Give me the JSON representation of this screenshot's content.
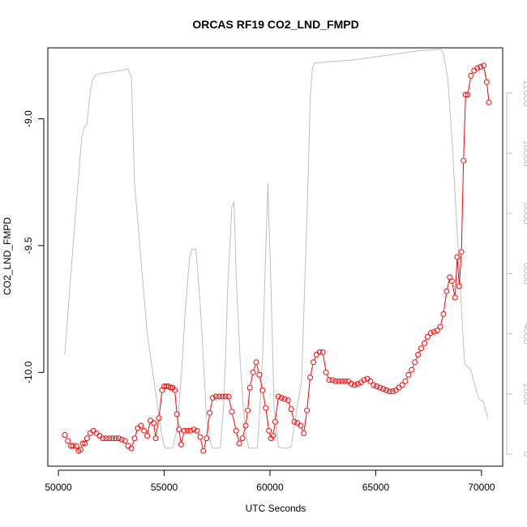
{
  "chart_data": {
    "type": "line",
    "title": "ORCAS RF19 CO2_LND_FMPD",
    "xlabel": "UTC Seconds",
    "ylabel": "CO2_LND_FMPD",
    "xlim": [
      49500,
      71000
    ],
    "ylim": [
      -10.37,
      -8.72
    ],
    "y2lim": [
      -400,
      13500
    ],
    "x_ticks": [
      50000,
      55000,
      60000,
      65000,
      70000
    ],
    "y_ticks": [
      -10.0,
      -9.5,
      -9.0
    ],
    "y_tick_labels": [
      "-10.0",
      "-9.5",
      "-9.0"
    ],
    "y2_ticks": [
      0,
      2000,
      4000,
      6000,
      8000,
      10000,
      12000
    ],
    "colors": {
      "co2": "#ff0000",
      "altitude": "#bebebe",
      "axis": "#000000"
    },
    "series": [
      {
        "color": "#ff0000",
        "style": "points+line",
        "x": [
          50300,
          50450,
          50600,
          50700,
          50850,
          50950,
          51050,
          51150,
          51250,
          51350,
          51500,
          51650,
          51800,
          51950,
          52100,
          52250,
          52400,
          52550,
          52700,
          52850,
          53000,
          53150,
          53300,
          53450,
          53600,
          53750,
          53900,
          54050,
          54200,
          54350,
          54500,
          54600,
          54750,
          54900,
          55000,
          55100,
          55200,
          55300,
          55400,
          55500,
          55600,
          55700,
          55800,
          55950,
          56100,
          56250,
          56400,
          56550,
          56700,
          56850,
          57000,
          57150,
          57300,
          57450,
          57600,
          57750,
          57900,
          58050,
          58200,
          58400,
          58550,
          58700,
          58850,
          58950,
          59050,
          59200,
          59350,
          59500,
          59650,
          59800,
          59950,
          60050,
          60150,
          60250,
          60400,
          60550,
          60700,
          60850,
          61000,
          61150,
          61300,
          61450,
          61600,
          61750,
          61900,
          62050,
          62200,
          62350,
          62500,
          62650,
          62800,
          62950,
          63100,
          63250,
          63400,
          63550,
          63700,
          63850,
          64000,
          64150,
          64300,
          64450,
          64600,
          64750,
          64900,
          65050,
          65200,
          65350,
          65500,
          65650,
          65800,
          65950,
          66100,
          66250,
          66400,
          66550,
          66700,
          66850,
          67000,
          67150,
          67300,
          67450,
          67600,
          67750,
          67900,
          68050,
          68200,
          68350,
          68500,
          68600,
          68750,
          68850,
          68950,
          69050,
          69150,
          69250,
          69350,
          69500,
          69650,
          69800,
          69950,
          70100,
          70250,
          70350
        ],
        "y": [
          -10.247,
          -10.27,
          -10.29,
          -10.29,
          -10.29,
          -10.31,
          -10.305,
          -10.28,
          -10.28,
          -10.26,
          -10.24,
          -10.23,
          -10.24,
          -10.25,
          -10.26,
          -10.26,
          -10.26,
          -10.26,
          -10.26,
          -10.26,
          -10.265,
          -10.27,
          -10.29,
          -10.3,
          -10.26,
          -10.22,
          -10.21,
          -10.23,
          -10.25,
          -10.19,
          -10.2,
          -10.26,
          -10.18,
          -10.07,
          -10.055,
          -10.055,
          -10.055,
          -10.06,
          -10.06,
          -10.07,
          -10.165,
          -10.225,
          -10.285,
          -10.23,
          -10.23,
          -10.23,
          -10.225,
          -10.23,
          -10.255,
          -10.31,
          -10.26,
          -10.16,
          -10.1,
          -10.095,
          -10.095,
          -10.095,
          -10.095,
          -10.095,
          -10.155,
          -10.23,
          -10.28,
          -10.26,
          -10.21,
          -10.15,
          -10.06,
          -10,
          -9.96,
          -10.01,
          -10.07,
          -10.14,
          -10.23,
          -10.26,
          -10.25,
          -10.195,
          -10.095,
          -10.1,
          -10.105,
          -10.11,
          -10.145,
          -10.195,
          -10.2,
          -10.21,
          -10.24,
          -10.15,
          -10.02,
          -9.96,
          -9.93,
          -9.92,
          -9.92,
          -10,
          -10.03,
          -10.03,
          -10.035,
          -10.035,
          -10.035,
          -10.035,
          -10.035,
          -10.045,
          -10.05,
          -10.045,
          -10.04,
          -10.03,
          -10.025,
          -10.035,
          -10.05,
          -10.055,
          -10.06,
          -10.065,
          -10.07,
          -10.075,
          -10.075,
          -10.07,
          -10.06,
          -10.05,
          -10.035,
          -10.01,
          -9.99,
          -9.96,
          -9.93,
          -9.905,
          -9.885,
          -9.86,
          -9.845,
          -9.84,
          -9.835,
          -9.82,
          -9.77,
          -9.68,
          -9.625,
          -9.64,
          -9.705,
          -9.545,
          -9.66,
          -9.525,
          -9.165,
          -8.905,
          -8.905,
          -8.83,
          -8.81,
          -8.8,
          -8.795,
          -8.79,
          -8.855,
          -8.935
        ]
      },
      {
        "color": "#bebebe",
        "style": "line",
        "axis": "right",
        "x": [
          50300,
          50700,
          51100,
          51200,
          51350,
          51500,
          51600,
          51700,
          51800,
          52000,
          52500,
          53000,
          53300,
          53450,
          53600,
          54200,
          54850,
          55000,
          55100,
          55200,
          55400,
          55600,
          55800,
          56000,
          56200,
          56300,
          56400,
          56500,
          56700,
          56900,
          57000,
          57200,
          57300,
          57450,
          57650,
          57800,
          57900,
          58000,
          58200,
          58300,
          58400,
          58600,
          58750,
          58900,
          59000,
          59200,
          59400,
          59500,
          59650,
          59800,
          59900,
          60050,
          60200,
          60400,
          60600,
          60800,
          61000,
          61500,
          61800,
          61900,
          62000,
          62100,
          63000,
          64000,
          65000,
          66000,
          67000,
          68000,
          68100,
          68200,
          68400,
          68600,
          68800,
          69000,
          69200,
          69500,
          69600,
          69800,
          69900,
          70000,
          70100,
          70300
        ],
        "y": [
          3300,
          7000,
          10500,
          10800,
          11000,
          12000,
          12400,
          12550,
          12600,
          12650,
          12700,
          12750,
          12800,
          12500,
          9000,
          4000,
          800,
          250,
          200,
          200,
          200,
          800,
          2500,
          4800,
          6500,
          6800,
          6800,
          6800,
          5000,
          2500,
          1200,
          350,
          200,
          200,
          200,
          1500,
          3200,
          5500,
          8200,
          8400,
          6000,
          3000,
          1500,
          500,
          200,
          200,
          200,
          1200,
          3200,
          6800,
          9000,
          5500,
          1500,
          250,
          200,
          200,
          250,
          2500,
          9000,
          11800,
          12800,
          13000,
          13050,
          13100,
          13200,
          13300,
          13400,
          13450,
          13450,
          13300,
          12500,
          10500,
          8000,
          5500,
          3000,
          2800,
          2500,
          2000,
          1800,
          1800,
          1700,
          1200
        ]
      }
    ]
  }
}
